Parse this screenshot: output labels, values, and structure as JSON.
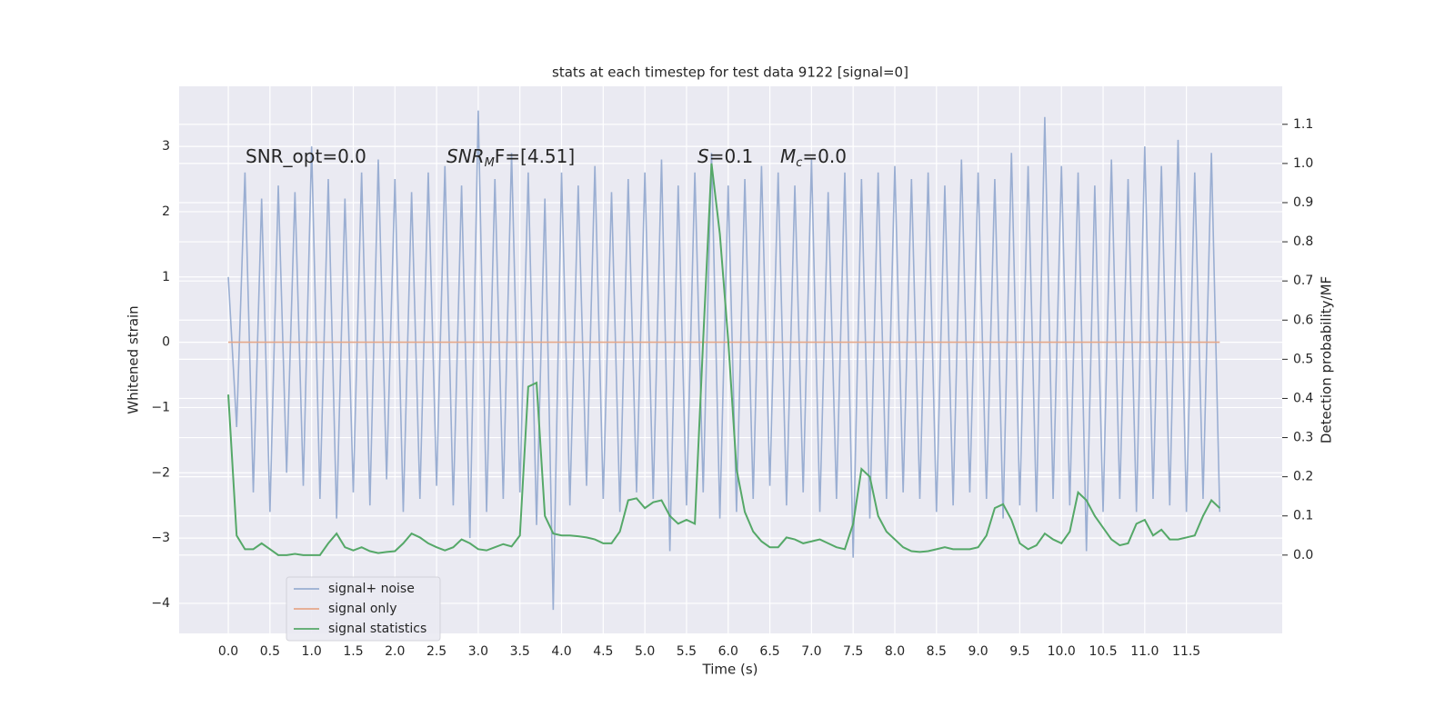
{
  "chart_data": {
    "type": "line",
    "title": "stats at each timestep for test data 9122 [signal=0]",
    "xlabel": "Time (s)",
    "ylabel": "Whitened strain",
    "y2label": "Detection probability/MF",
    "annotations": [
      [
        {
          "text": "SNR_opt=0.0",
          "style": "normal"
        }
      ],
      [
        {
          "text": "SNR",
          "style": "italic"
        },
        {
          "text": "M",
          "style": "sub"
        },
        {
          "text": "F=[4.51]",
          "style": "normal"
        }
      ],
      [
        {
          "text": "S",
          "style": "italic"
        },
        {
          "text": "=0.1",
          "style": "normal"
        }
      ],
      [
        {
          "text": "M",
          "style": "italic"
        },
        {
          "text": "c",
          "style": "sub"
        },
        {
          "text": "=0.0",
          "style": "normal"
        }
      ]
    ],
    "x": [
      0,
      0.1,
      0.2,
      0.3,
      0.4,
      0.5,
      0.6,
      0.7,
      0.8,
      0.9,
      1,
      1.1,
      1.2,
      1.3,
      1.4,
      1.5,
      1.6,
      1.7,
      1.8,
      1.9,
      2,
      2.1,
      2.2,
      2.3,
      2.4,
      2.5,
      2.6,
      2.7,
      2.8,
      2.9,
      3,
      3.1,
      3.2,
      3.3,
      3.4,
      3.5,
      3.6,
      3.7,
      3.8,
      3.9,
      4,
      4.1,
      4.2,
      4.3,
      4.4,
      4.5,
      4.6,
      4.7,
      4.8,
      4.9,
      5,
      5.1,
      5.2,
      5.3,
      5.4,
      5.5,
      5.6,
      5.7,
      5.8,
      5.9,
      6,
      6.1,
      6.2,
      6.3,
      6.4,
      6.5,
      6.6,
      6.7,
      6.8,
      6.9,
      7,
      7.1,
      7.2,
      7.3,
      7.4,
      7.5,
      7.6,
      7.7,
      7.8,
      7.9,
      8,
      8.1,
      8.2,
      8.3,
      8.4,
      8.5,
      8.6,
      8.7,
      8.8,
      8.9,
      9,
      9.1,
      9.2,
      9.3,
      9.4,
      9.5,
      9.6,
      9.7,
      9.8,
      9.9,
      10,
      10.1,
      10.2,
      10.3,
      10.4,
      10.5,
      10.6,
      10.7,
      10.8,
      10.9,
      11,
      11.1,
      11.2,
      11.3,
      11.4,
      11.5,
      11.6,
      11.7,
      11.8,
      11.9
    ],
    "series": [
      {
        "name": "signal+ noise",
        "color": "#9aaed2",
        "axis": "y",
        "values": [
          1.0,
          -1.3,
          2.6,
          -2.3,
          2.2,
          -2.6,
          2.4,
          -2.0,
          2.3,
          -2.2,
          3.0,
          -2.4,
          2.5,
          -2.7,
          2.2,
          -2.3,
          2.6,
          -2.5,
          2.8,
          -2.1,
          2.5,
          -2.6,
          2.3,
          -2.4,
          2.6,
          -2.2,
          2.7,
          -2.5,
          2.4,
          -3.0,
          3.55,
          -2.6,
          2.5,
          -2.4,
          2.9,
          -2.3,
          2.6,
          -2.8,
          2.2,
          -4.1,
          2.6,
          -2.5,
          2.4,
          -2.2,
          2.7,
          -2.4,
          2.3,
          -2.6,
          2.5,
          -2.3,
          2.6,
          -2.4,
          2.8,
          -3.2,
          2.4,
          -2.5,
          2.6,
          -2.3,
          2.9,
          -2.7,
          2.4,
          -2.6,
          2.5,
          -2.4,
          2.7,
          -2.2,
          2.6,
          -2.5,
          2.4,
          -2.3,
          2.8,
          -2.6,
          2.3,
          -2.4,
          2.6,
          -3.3,
          2.5,
          -2.7,
          2.6,
          -2.4,
          2.7,
          -2.3,
          2.5,
          -2.4,
          2.6,
          -2.6,
          2.4,
          -2.5,
          2.8,
          -2.3,
          2.6,
          -2.4,
          2.5,
          -2.7,
          2.9,
          -2.5,
          2.7,
          -2.6,
          3.45,
          -2.4,
          2.7,
          -2.5,
          2.6,
          -3.2,
          2.4,
          -2.6,
          2.8,
          -2.4,
          2.5,
          -2.6,
          3.0,
          -2.4,
          2.7,
          -2.5,
          3.1,
          -2.6,
          2.6,
          -2.4,
          2.9,
          -2.6
        ]
      },
      {
        "name": "signal only",
        "color": "#e5a88a",
        "axis": "y",
        "values": [
          0,
          0,
          0,
          0,
          0,
          0,
          0,
          0,
          0,
          0,
          0,
          0,
          0,
          0,
          0,
          0,
          0,
          0,
          0,
          0,
          0,
          0,
          0,
          0,
          0,
          0,
          0,
          0,
          0,
          0,
          0,
          0,
          0,
          0,
          0,
          0,
          0,
          0,
          0,
          0,
          0,
          0,
          0,
          0,
          0,
          0,
          0,
          0,
          0,
          0,
          0,
          0,
          0,
          0,
          0,
          0,
          0,
          0,
          0,
          0,
          0,
          0,
          0,
          0,
          0,
          0,
          0,
          0,
          0,
          0,
          0,
          0,
          0,
          0,
          0,
          0,
          0,
          0,
          0,
          0,
          0,
          0,
          0,
          0,
          0,
          0,
          0,
          0,
          0,
          0,
          0,
          0,
          0,
          0,
          0,
          0,
          0,
          0,
          0,
          0,
          0,
          0,
          0,
          0,
          0,
          0,
          0,
          0,
          0,
          0,
          0,
          0,
          0,
          0,
          0,
          0,
          0,
          0,
          0,
          0
        ]
      },
      {
        "name": "signal statistics",
        "color": "#55a868",
        "axis": "y2",
        "values": [
          0.41,
          0.05,
          0.015,
          0.015,
          0.03,
          0.015,
          0.0,
          0.0,
          0.003,
          0.0,
          0.0,
          0.0,
          0.03,
          0.055,
          0.02,
          0.012,
          0.02,
          0.01,
          0.005,
          0.008,
          0.01,
          0.03,
          0.055,
          0.045,
          0.03,
          0.02,
          0.012,
          0.02,
          0.04,
          0.03,
          0.015,
          0.012,
          0.02,
          0.028,
          0.022,
          0.05,
          0.43,
          0.44,
          0.1,
          0.055,
          0.05,
          0.05,
          0.048,
          0.045,
          0.04,
          0.03,
          0.03,
          0.06,
          0.14,
          0.145,
          0.12,
          0.135,
          0.14,
          0.1,
          0.08,
          0.09,
          0.08,
          0.55,
          1.0,
          0.82,
          0.55,
          0.22,
          0.11,
          0.06,
          0.035,
          0.02,
          0.02,
          0.045,
          0.04,
          0.03,
          0.035,
          0.04,
          0.03,
          0.02,
          0.015,
          0.08,
          0.22,
          0.2,
          0.1,
          0.06,
          0.04,
          0.02,
          0.01,
          0.008,
          0.01,
          0.015,
          0.02,
          0.015,
          0.015,
          0.015,
          0.02,
          0.05,
          0.12,
          0.13,
          0.09,
          0.03,
          0.015,
          0.025,
          0.055,
          0.04,
          0.03,
          0.06,
          0.16,
          0.14,
          0.1,
          0.07,
          0.04,
          0.025,
          0.03,
          0.08,
          0.09,
          0.05,
          0.065,
          0.04,
          0.04,
          0.045,
          0.05,
          0.1,
          0.14,
          0.12
        ]
      }
    ],
    "xlim": [
      -0.59,
      12.65
    ],
    "xticks": [
      {
        "value": 0,
        "label": "0.0"
      },
      0.5,
      {
        "value": 1,
        "label": "1.0"
      },
      1.5,
      {
        "value": 2,
        "label": "2.0"
      },
      2.5,
      {
        "value": 3,
        "label": "3.0"
      },
      3.5,
      {
        "value": 4,
        "label": "4.0"
      },
      4.5,
      {
        "value": 5,
        "label": "5.0"
      },
      5.5,
      {
        "value": 6,
        "label": "6.0"
      },
      6.5,
      {
        "value": 7,
        "label": "7.0"
      },
      7.5,
      {
        "value": 8,
        "label": "8.0"
      },
      8.5,
      {
        "value": 9,
        "label": "9.0"
      },
      9.5,
      {
        "value": 10,
        "label": "10.0"
      },
      10.5,
      {
        "value": 11,
        "label": "11.0"
      },
      11.5
    ],
    "ylim": [
      -4.46,
      3.92
    ],
    "yticks": [
      {
        "value": -4,
        "label": "−4"
      },
      {
        "value": -3,
        "label": "−3"
      },
      {
        "value": -2,
        "label": "−2"
      },
      {
        "value": -1,
        "label": "−1"
      },
      0,
      1,
      2,
      3
    ],
    "y2lim": [
      -0.2,
      1.197
    ],
    "y2ticks": [
      {
        "value": 0,
        "label": "0.0"
      },
      0.1,
      0.2,
      0.3,
      0.4,
      0.5,
      0.6,
      0.7,
      0.8,
      0.9,
      {
        "value": 1,
        "label": "1.0"
      },
      1.1
    ],
    "grid": true,
    "legend": "lower left"
  }
}
